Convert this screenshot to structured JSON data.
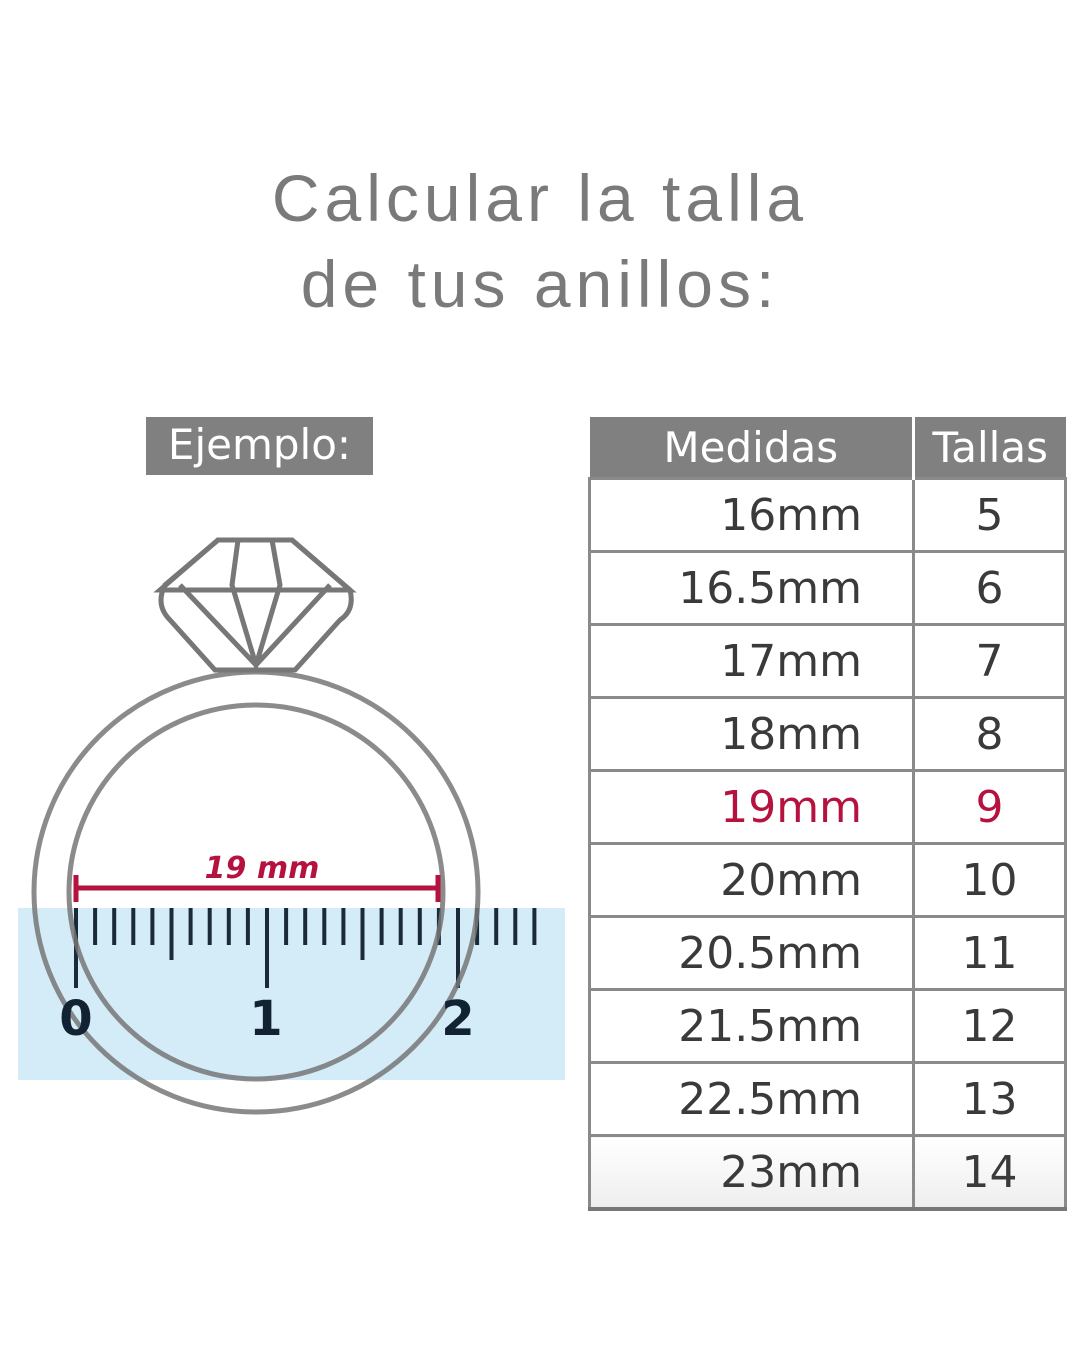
{
  "title": {
    "line1": "Calcular la talla",
    "line2": "de tus anillos:"
  },
  "example": {
    "label": "Ejemplo:",
    "measure_label": "19 mm",
    "ruler_labels": [
      "0",
      "1",
      "2"
    ]
  },
  "colors": {
    "accent": "#b5123f",
    "header": "#808080",
    "ruler": "#d4ecf8"
  },
  "table": {
    "headers": [
      "Medidas",
      "Tallas"
    ],
    "highlight_index": 4,
    "rows": [
      [
        "16mm",
        "5"
      ],
      [
        "16.5mm",
        "6"
      ],
      [
        "17mm",
        "7"
      ],
      [
        "18mm",
        "8"
      ],
      [
        "19mm",
        "9"
      ],
      [
        "20mm",
        "10"
      ],
      [
        "20.5mm",
        "11"
      ],
      [
        "21.5mm",
        "12"
      ],
      [
        "22.5mm",
        "13"
      ],
      [
        "23mm",
        "14"
      ]
    ]
  }
}
